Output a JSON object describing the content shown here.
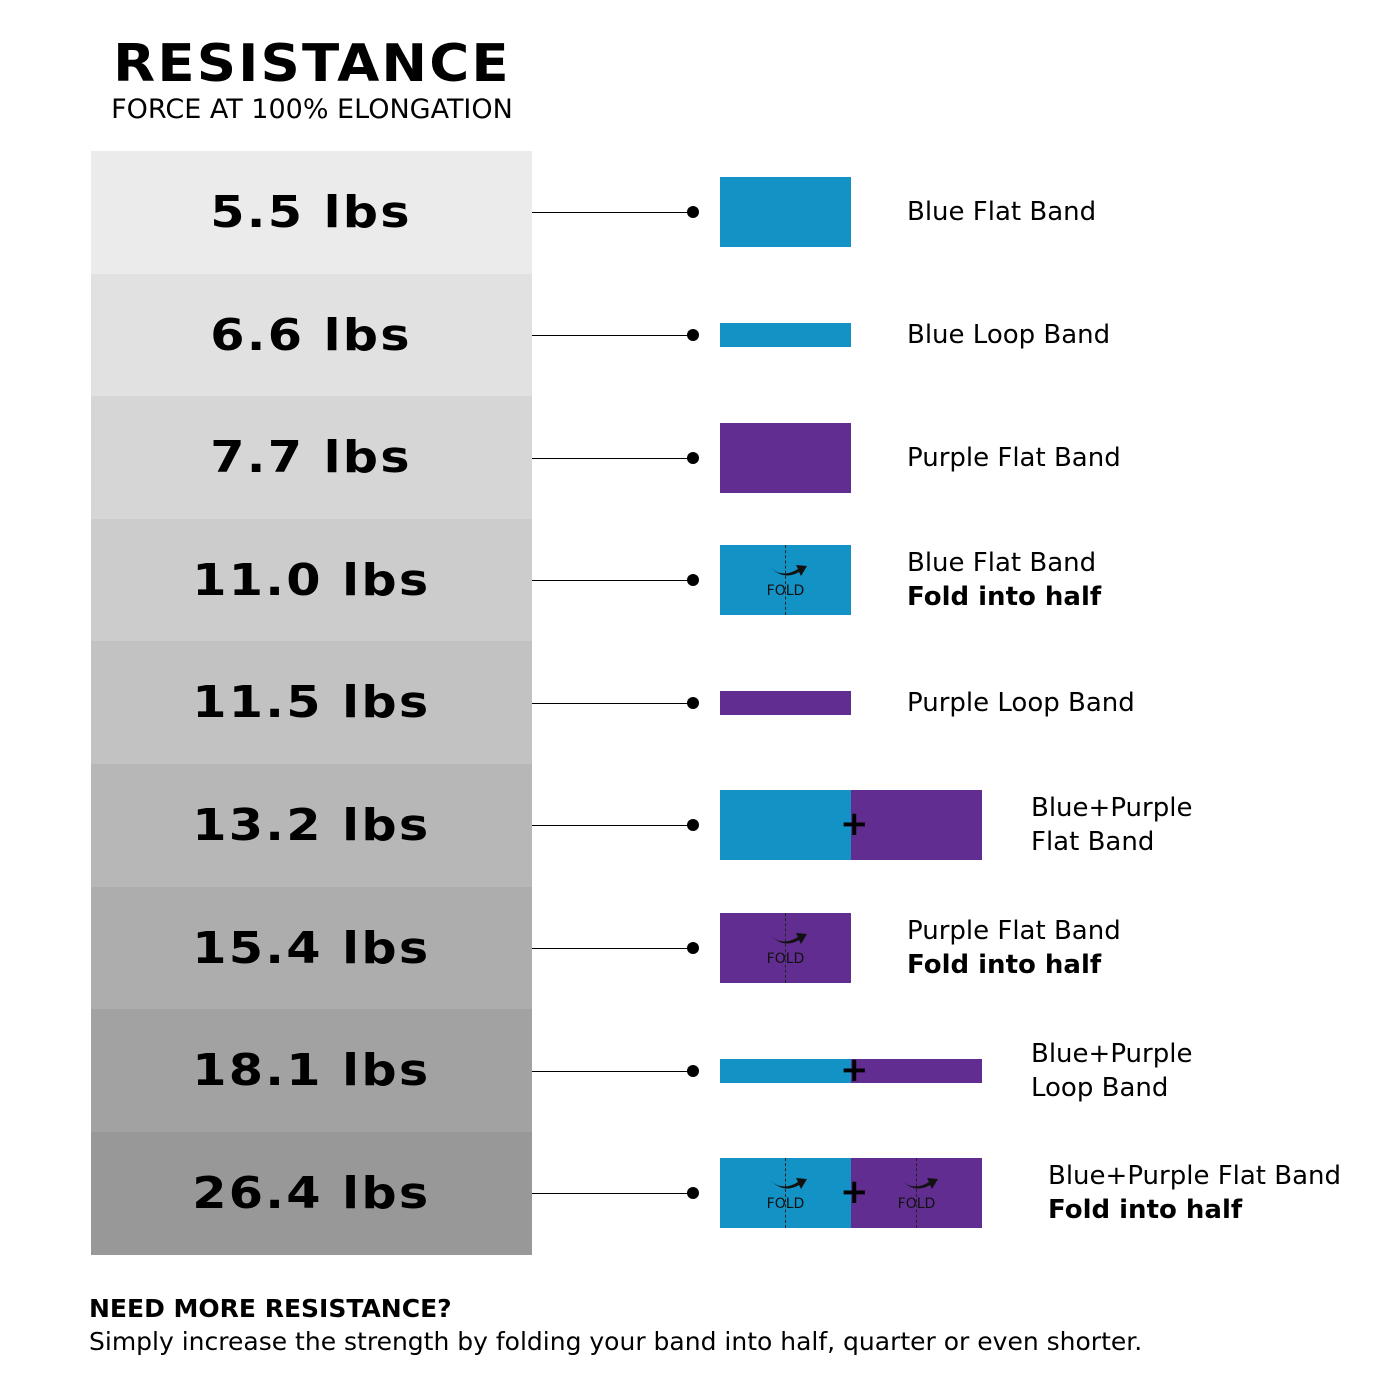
{
  "header": {
    "title": "RESISTANCE",
    "subtitle": "FORCE AT 100% ELONGATION"
  },
  "colors": {
    "blue": "#1392C5",
    "purple": "#622D90",
    "scale_light": "#EBEBEB",
    "scale_dark": "#989898"
  },
  "fold_label": "FOLD",
  "rows": [
    {
      "value": "5.5 lbs",
      "label_line1": "Blue Flat Band",
      "label_line2": "",
      "band": "flat",
      "segments": [
        "blue"
      ],
      "fold": false
    },
    {
      "value": "6.6 lbs",
      "label_line1": "Blue Loop Band",
      "label_line2": "",
      "band": "loop",
      "segments": [
        "blue"
      ],
      "fold": false
    },
    {
      "value": "7.7 lbs",
      "label_line1": "Purple Flat Band",
      "label_line2": "",
      "band": "flat",
      "segments": [
        "purple"
      ],
      "fold": false
    },
    {
      "value": "11.0 lbs",
      "label_line1": "Blue Flat Band",
      "label_line2": "Fold into half",
      "band": "flat",
      "segments": [
        "blue"
      ],
      "fold": true
    },
    {
      "value": "11.5 lbs",
      "label_line1": "Purple Loop Band",
      "label_line2": "",
      "band": "loop",
      "segments": [
        "purple"
      ],
      "fold": false
    },
    {
      "value": "13.2 lbs",
      "label_line1": "Blue+Purple",
      "label_line2": "Flat Band",
      "label_line2_plain": true,
      "band": "flat",
      "segments": [
        "blue",
        "purple"
      ],
      "fold": false
    },
    {
      "value": "15.4 lbs",
      "label_line1": "Purple Flat Band",
      "label_line2": "Fold into half",
      "band": "flat",
      "segments": [
        "purple"
      ],
      "fold": true
    },
    {
      "value": "18.1 lbs",
      "label_line1": "Blue+Purple",
      "label_line2": "Loop Band",
      "label_line2_plain": true,
      "band": "loop",
      "segments": [
        "blue",
        "purple"
      ],
      "fold": false
    },
    {
      "value": "26.4 lbs",
      "label_line1": "Blue+Purple Flat Band",
      "label_line2": "Fold into half",
      "band": "flat",
      "segments": [
        "blue",
        "purple"
      ],
      "fold": true
    }
  ],
  "note": {
    "heading": "NEED MORE RESISTANCE?",
    "body": "Simply increase the strength by folding your band into half, quarter or even shorter."
  }
}
